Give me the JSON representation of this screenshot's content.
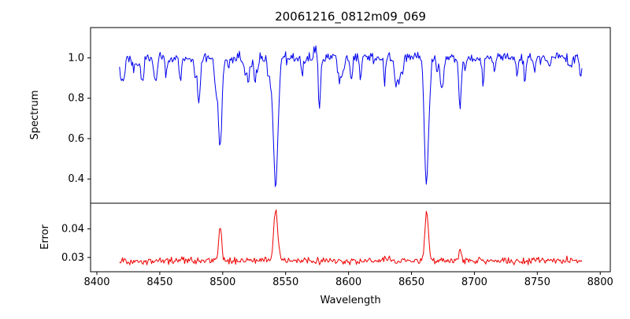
{
  "title": "20061216_0812m09_069",
  "chart_data": {
    "type": "line",
    "title": "20061216_0812m09_069",
    "xlabel": "Wavelength",
    "xlim": [
      8395,
      8808
    ],
    "x_ticks": [
      8400,
      8450,
      8500,
      8550,
      8600,
      8650,
      8700,
      8750,
      8800
    ],
    "x_start": 8418,
    "x_end": 8786,
    "x_step": 0.75,
    "seed": 42,
    "legend": "none",
    "grid": false,
    "panels": [
      {
        "name": "spectrum",
        "ylabel": "Spectrum",
        "ylim": [
          0.28,
          1.15
        ],
        "y_ticks": [
          0.4,
          0.6,
          0.8,
          1.0
        ],
        "y_tick_labels": [
          "0.4",
          "0.6",
          "0.8",
          "1.0"
        ],
        "color": "#0000ee",
        "baseline": 1.0,
        "noise_sigma": 0.014,
        "major_lines": [
          {
            "center": 8498.0,
            "depth": 0.46,
            "sigma": 1.4
          },
          {
            "center": 8542.1,
            "depth": 0.64,
            "sigma": 1.8
          },
          {
            "center": 8662.1,
            "depth": 0.58,
            "sigma": 1.6
          },
          {
            "center": 8688.6,
            "depth": 0.24,
            "sigma": 1.0
          }
        ],
        "minor_lines": {
          "count": 55,
          "depth_min": 0.03,
          "depth_max": 0.13,
          "sigma_min": 0.5,
          "sigma_max": 1.2
        }
      },
      {
        "name": "error",
        "ylabel": "Error",
        "ylim": [
          0.025,
          0.049
        ],
        "y_ticks": [
          0.03,
          0.04
        ],
        "y_tick_labels": [
          "0.03",
          "0.04"
        ],
        "color": "#ee0000",
        "baseline": 0.0288,
        "noise_sigma": 0.0006,
        "peaks": [
          {
            "center": 8498.0,
            "height": 0.012,
            "sigma": 1.2
          },
          {
            "center": 8542.1,
            "height": 0.018,
            "sigma": 1.6
          },
          {
            "center": 8662.1,
            "height": 0.017,
            "sigma": 1.4
          },
          {
            "center": 8688.6,
            "height": 0.004,
            "sigma": 1.0
          }
        ]
      }
    ]
  }
}
